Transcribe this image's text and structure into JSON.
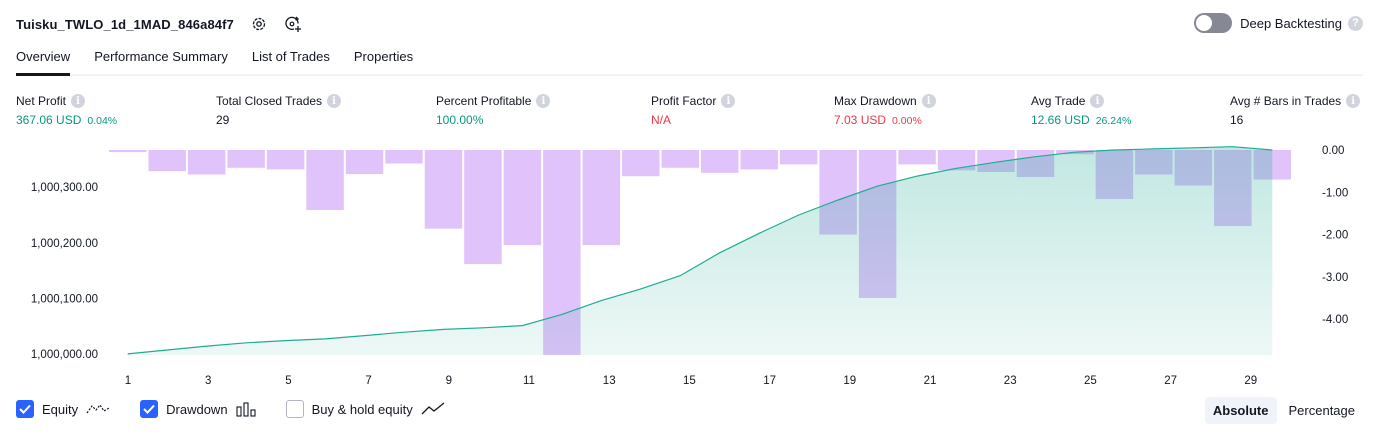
{
  "header": {
    "title": "Tuisku_TWLO_1d_1MAD_846a84f7",
    "icons": [
      "settings-icon",
      "refresh-add-icon"
    ]
  },
  "deep_backtesting": {
    "label": "Deep Backtesting",
    "enabled": false,
    "help": "?"
  },
  "tabs": [
    {
      "label": "Overview",
      "active": true
    },
    {
      "label": "Performance Summary",
      "active": false
    },
    {
      "label": "List of Trades",
      "active": false
    },
    {
      "label": "Properties",
      "active": false
    }
  ],
  "info_glyph": "i",
  "metrics": [
    {
      "label": "Net Profit",
      "value": "367.06 USD",
      "sub": "0.04%",
      "color": "#089981"
    },
    {
      "label": "Total Closed Trades",
      "value": "29",
      "sub": "",
      "color": "#131722"
    },
    {
      "label": "Percent Profitable",
      "value": "100.00%",
      "sub": "",
      "color": "#089981"
    },
    {
      "label": "Profit Factor",
      "value": "N/A",
      "sub": "",
      "color": "#f23645"
    },
    {
      "label": "Max Drawdown",
      "value": "7.03 USD",
      "sub": "0.00%",
      "color": "#f23645"
    },
    {
      "label": "Avg Trade",
      "value": "12.66 USD",
      "sub": "26.24%",
      "color": "#089981"
    },
    {
      "label": "Avg # Bars in Trades",
      "value": "16",
      "sub": "",
      "color": "#131722"
    }
  ],
  "chart_data": {
    "type": "area",
    "x_ticks": [
      "1",
      "3",
      "5",
      "7",
      "9",
      "11",
      "13",
      "15",
      "17",
      "19",
      "21",
      "23",
      "25",
      "27",
      "29"
    ],
    "left_axis": {
      "ticks": [
        "1,000,000.00",
        "1,000,100.00",
        "1,000,200.00",
        "1,000,300.00"
      ],
      "range": [
        999998,
        1000367
      ]
    },
    "right_axis": {
      "ticks": [
        "0.00",
        "-1.00",
        "-2.00",
        "-3.00",
        "-4.00"
      ],
      "range": [
        -4.85,
        0
      ]
    },
    "series": [
      {
        "name": "Equity",
        "color": "#22ab94",
        "x": [
          1,
          2,
          3,
          4,
          5,
          6,
          7,
          8,
          9,
          10,
          11,
          12,
          13,
          14,
          15,
          16,
          17,
          18,
          19,
          20,
          21,
          22,
          23,
          24,
          25,
          26,
          27,
          28,
          29,
          30
        ],
        "values": [
          1000000,
          1000007,
          1000014,
          1000020,
          1000024,
          1000027,
          1000033,
          1000039,
          1000044,
          1000047,
          1000051,
          1000071,
          1000096,
          1000117,
          1000141,
          1000182,
          1000217,
          1000250,
          1000277,
          1000302,
          1000320,
          1000334,
          1000345,
          1000355,
          1000363,
          1000367,
          1000369,
          1000371,
          1000373,
          1000367
        ]
      },
      {
        "name": "Drawdown",
        "color": "#c891f7",
        "x": [
          1,
          2,
          3,
          4,
          5,
          6,
          7,
          8,
          9,
          10,
          11,
          12,
          13,
          14,
          15,
          16,
          17,
          18,
          19,
          20,
          21,
          22,
          23,
          24,
          25,
          26,
          27,
          28,
          29,
          30
        ],
        "values": [
          -0.05,
          -0.5,
          -0.58,
          -0.42,
          -0.46,
          -1.42,
          -0.57,
          -0.32,
          -1.86,
          -2.7,
          -2.25,
          -4.85,
          -2.25,
          -0.62,
          -0.42,
          -0.54,
          -0.46,
          -0.34,
          -2.0,
          -3.5,
          -0.34,
          -0.48,
          -0.52,
          -0.64,
          -0.1,
          -1.16,
          -0.58,
          -0.84,
          -1.8,
          -0.7
        ]
      }
    ]
  },
  "legend": [
    {
      "label": "Equity",
      "checked": true,
      "glyph": "equity-line-icon"
    },
    {
      "label": "Drawdown",
      "checked": true,
      "glyph": "bars-icon"
    },
    {
      "label": "Buy & hold equity",
      "checked": false,
      "glyph": "trend-line-icon"
    }
  ],
  "modes": [
    {
      "label": "Absolute",
      "active": true
    },
    {
      "label": "Percentage",
      "active": false
    }
  ]
}
